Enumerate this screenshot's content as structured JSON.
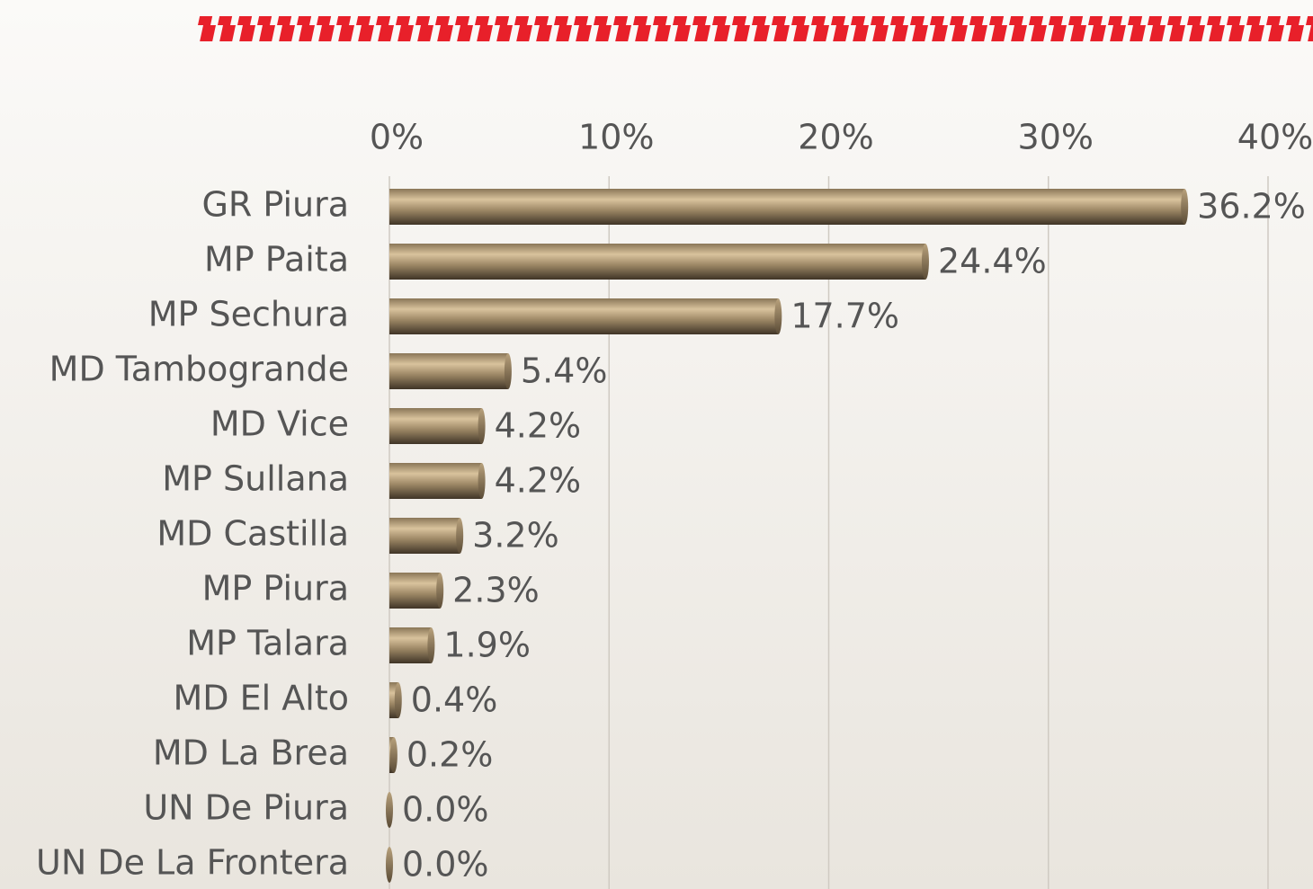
{
  "chart_data": {
    "type": "bar",
    "orientation": "horizontal",
    "categories": [
      "GR Piura",
      "MP Paita",
      "MP Sechura",
      "MD Tambogrande",
      "MD Vice",
      "MP Sullana",
      "MD Castilla",
      "MP Piura",
      "MP Talara",
      "MD El Alto",
      "MD La Brea",
      "UN De Piura",
      "UN De La Frontera"
    ],
    "values": [
      36.2,
      24.4,
      17.7,
      5.4,
      4.2,
      4.2,
      3.2,
      2.3,
      1.9,
      0.4,
      0.2,
      0,
      0
    ],
    "value_labels": [
      "36.2%",
      "24.4%",
      "17.7%",
      "5.4%",
      "4.2%",
      "4.2%",
      "3.2%",
      "2.3%",
      "1.9%",
      "0.4%",
      "0.2%",
      "0.0%",
      "0.0%"
    ],
    "color": "#9c8765",
    "xlim": [
      0,
      40
    ],
    "xticks": [
      {
        "value": 0,
        "label": "0%"
      },
      {
        "value": 10,
        "label": "10%"
      },
      {
        "value": 20,
        "label": "20%"
      },
      {
        "value": 30,
        "label": "30%"
      },
      {
        "value": 40,
        "label": "40%"
      }
    ],
    "grid": true
  }
}
